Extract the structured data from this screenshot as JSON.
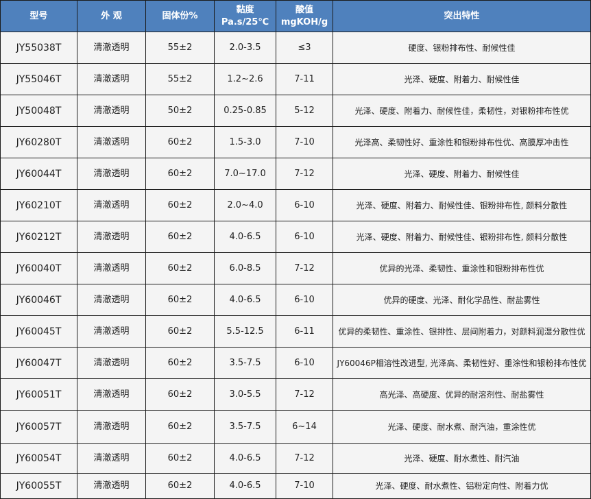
{
  "colors": {
    "header_bg": "#4f81bd",
    "row_bg": "#f4f4f4",
    "border": "#1a1a1a"
  },
  "headers": {
    "model": "型号",
    "appearance": "外 观",
    "solids": "固体份%",
    "viscosity_line1": "黏度",
    "viscosity_line2": "Pa.s/25℃",
    "acid_line1": "酸值",
    "acid_line2": "mgKOH/g",
    "features": "突出特性"
  },
  "rows": [
    {
      "model": "JY55038T",
      "appearance": "清澈透明",
      "solids": "55±2",
      "viscosity": "2.0-3.5",
      "acid": "≤3",
      "features": "硬度、银粉排布性、耐候性佳"
    },
    {
      "model": "JY55046T",
      "appearance": "清澈透明",
      "solids": "55±2",
      "viscosity": "1.2~2.6",
      "acid": "7-11",
      "features": "光泽、硬度、附着力、耐候性佳"
    },
    {
      "model": "JY50048T",
      "appearance": "清澈透明",
      "solids": "50±2",
      "viscosity": "0.25-0.85",
      "acid": "5-12",
      "features": "光泽、硬度、附着力、耐候性佳，柔韧性，对银粉排布性优"
    },
    {
      "model": "JY60280T",
      "appearance": "清澈透明",
      "solids": "60±2",
      "viscosity": "1.5-3.0",
      "acid": "7-10",
      "features": "光泽高、柔韧性好、重涂性和银粉排布性优、高膜厚冲击性"
    },
    {
      "model": "JY60044T",
      "appearance": "清澈透明",
      "solids": "60±2",
      "viscosity": "7.0~17.0",
      "acid": "7-12",
      "features": "光泽、硬度、附着力、耐候性佳"
    },
    {
      "model": "JY60210T",
      "appearance": "清澈透明",
      "solids": "60±2",
      "viscosity": "2.0~4.0",
      "acid": "6-10",
      "features": "光泽、硬度、附着力、耐候性佳、银粉排布性, 颜料分散性"
    },
    {
      "model": "JY60212T",
      "appearance": "清澈透明",
      "solids": "60±2",
      "viscosity": "4.0-6.5",
      "acid": "6-10",
      "features": "光泽、硬度、附着力、耐候性佳、银粉排布性, 颜料分散性"
    },
    {
      "model": "JY60040T",
      "appearance": "清澈透明",
      "solids": "60±2",
      "viscosity": "6.0-8.5",
      "acid": "7-12",
      "features": "优异的光泽、柔韧性、重涂性和银粉排布性优"
    },
    {
      "model": "JY60046T",
      "appearance": "清澈透明",
      "solids": "60±2",
      "viscosity": "4.0-6.5",
      "acid": "6-10",
      "features": "优异的硬度、光泽、耐化学品性、耐盐雾性"
    },
    {
      "model": "JY60045T",
      "appearance": "清澈透明",
      "solids": "60±2",
      "viscosity": "5.5-12.5",
      "acid": "6-11",
      "features": "优异的柔韧性、重涂性、银排性、层间附着力，对颜料润湿分散性优"
    },
    {
      "model": "JY60047T",
      "appearance": "清澈透明",
      "solids": "60±2",
      "viscosity": "3.5-7.5",
      "acid": "6-10",
      "features": "JY60046P相溶性改进型, 光泽高、柔韧性好、重涂性和银粉排布性优"
    },
    {
      "model": "JY60051T",
      "appearance": "清澈透明",
      "solids": "60±2",
      "viscosity": "3.0-5.5",
      "acid": "7-12",
      "features": "高光泽、高硬度、优异的耐溶剂性、耐盐雾性"
    },
    {
      "model": "JY60057T",
      "appearance": "清澈透明",
      "solids": "60±2",
      "viscosity": "3.5-7.5",
      "acid": "6~14",
      "features": "光泽、硬度、耐水煮、耐汽油，重涂性优"
    },
    {
      "model": "JY60054T",
      "appearance": "清澈透明",
      "solids": "60±2",
      "viscosity": "4.0-6.5",
      "acid": "7-12",
      "features": "光泽、硬度、耐水煮性、耐汽油"
    },
    {
      "model": "JY60055T",
      "appearance": "清澈透明",
      "solids": "60±2",
      "viscosity": "4.0-6.5",
      "acid": "7-10",
      "features": "光泽、硬度、耐水煮性、铝粉定向性、附着力优"
    }
  ]
}
